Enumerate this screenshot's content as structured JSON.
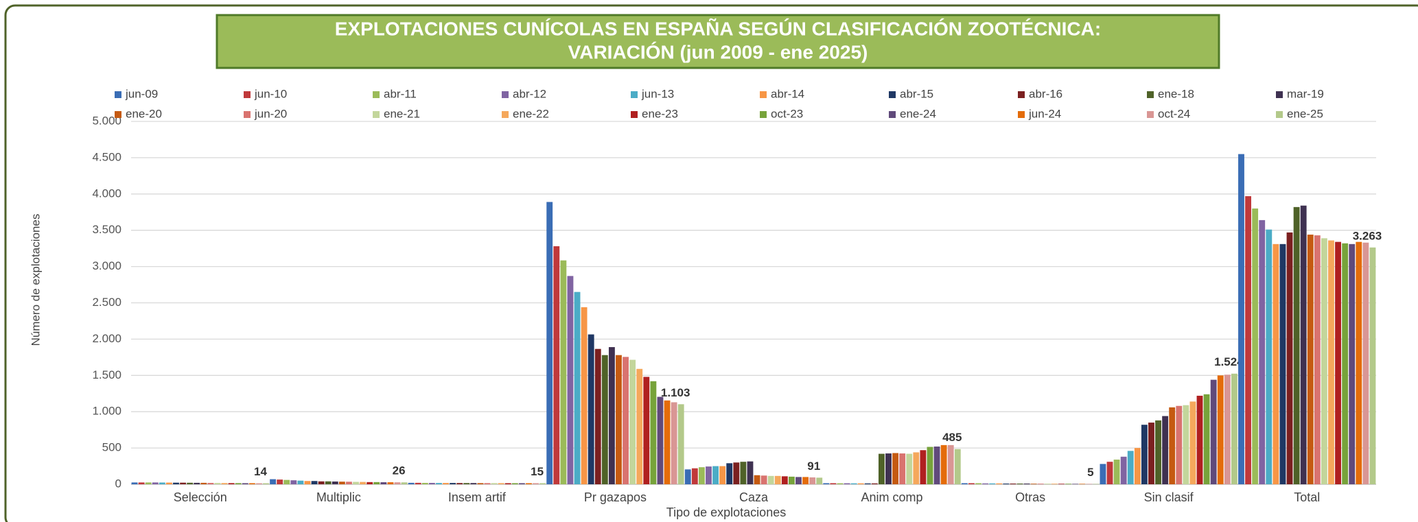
{
  "chart_data": {
    "type": "bar",
    "title": "EXPLOTACIONES CUNÍCOLAS EN ESPAÑA SEGÚN CLASIFICACIÓN ZOOTÉCNICA:",
    "subtitle": "VARIACIÓN  (jun 2009 - ene 2025)",
    "x_label": "Tipo de explotaciones",
    "y_label": "Número de explotaciones",
    "categories": [
      "Selección",
      "Multiplic",
      "Insem artif",
      "Pr gazapos",
      "Caza",
      "Anim comp",
      "Otras",
      "Sin clasif",
      "Total"
    ],
    "ylim": [
      0,
      5000
    ],
    "yticks": [
      0,
      500,
      {
        "value": 1000,
        "label": "1.000"
      },
      {
        "value": 1500,
        "label": "1.500"
      },
      {
        "value": 2000,
        "label": "2.000"
      },
      {
        "value": 2500,
        "label": "2.500"
      },
      {
        "value": 3000,
        "label": "3.000"
      },
      {
        "value": 3500,
        "label": "3.500"
      },
      {
        "value": 4000,
        "label": "4.000"
      },
      {
        "value": 4500,
        "label": "4.500"
      },
      {
        "value": 5000,
        "label": "5.000"
      }
    ],
    "grid": true,
    "legend": "top",
    "series": [
      {
        "name": "jun-09",
        "color": "#3a6db5",
        "values": [
          25,
          70,
          20,
          3890,
          205,
          15,
          15,
          280,
          4550
        ]
      },
      {
        "name": "jun-10",
        "color": "#c0393b",
        "values": [
          25,
          65,
          20,
          3280,
          220,
          15,
          15,
          310,
          3970
        ]
      },
      {
        "name": "abr-11",
        "color": "#9bbb59",
        "values": [
          25,
          60,
          19,
          3085,
          235,
          14,
          15,
          340,
          3800
        ]
      },
      {
        "name": "abr-12",
        "color": "#8064a2",
        "values": [
          25,
          55,
          19,
          2870,
          245,
          14,
          12,
          380,
          3640
        ]
      },
      {
        "name": "jun-13",
        "color": "#4bacc6",
        "values": [
          24,
          50,
          18,
          2650,
          250,
          13,
          12,
          460,
          3510
        ]
      },
      {
        "name": "abr-14",
        "color": "#f79646",
        "values": [
          23,
          45,
          18,
          2440,
          250,
          13,
          12,
          500,
          3310
        ]
      },
      {
        "name": "abr-15",
        "color": "#1f3864",
        "values": [
          22,
          45,
          18,
          2065,
          290,
          12,
          10,
          820,
          3310
        ]
      },
      {
        "name": "abr-16",
        "color": "#7b2020",
        "values": [
          22,
          40,
          17,
          1865,
          300,
          12,
          10,
          850,
          3470
        ]
      },
      {
        "name": "ene-18",
        "color": "#4f6228",
        "values": [
          21,
          40,
          17,
          1780,
          310,
          420,
          10,
          880,
          3820
        ]
      },
      {
        "name": "mar-19",
        "color": "#3f3151",
        "values": [
          20,
          38,
          17,
          1890,
          315,
          425,
          10,
          940,
          3840
        ]
      },
      {
        "name": "ene-20",
        "color": "#c55a11",
        "values": [
          20,
          36,
          16,
          1780,
          125,
          430,
          8,
          1060,
          3440
        ]
      },
      {
        "name": "jun-20",
        "color": "#d9736f",
        "values": [
          19,
          35,
          16,
          1755,
          120,
          425,
          8,
          1080,
          3430
        ]
      },
      {
        "name": "ene-21",
        "color": "#c3d69b",
        "values": [
          18,
          33,
          16,
          1715,
          115,
          420,
          8,
          1090,
          3390
        ]
      },
      {
        "name": "ene-22",
        "color": "#f5a85c",
        "values": [
          17,
          32,
          16,
          1590,
          115,
          440,
          8,
          1140,
          3360
        ]
      },
      {
        "name": "ene-23",
        "color": "#b02020",
        "values": [
          16,
          30,
          15,
          1480,
          110,
          470,
          7,
          1220,
          3340
        ]
      },
      {
        "name": "oct-23",
        "color": "#77a33b",
        "values": [
          16,
          30,
          15,
          1420,
          105,
          515,
          7,
          1240,
          3320
        ]
      },
      {
        "name": "ene-24",
        "color": "#604a7b",
        "values": [
          15,
          28,
          15,
          1205,
          100,
          520,
          6,
          1440,
          3310
        ]
      },
      {
        "name": "jun-24",
        "color": "#e46c0a",
        "values": [
          15,
          28,
          15,
          1155,
          100,
          540,
          6,
          1500,
          3340
        ]
      },
      {
        "name": "oct-24",
        "color": "#d99694",
        "values": [
          14,
          27,
          15,
          1130,
          95,
          540,
          5,
          1510,
          3330
        ]
      },
      {
        "name": "ene-25",
        "color": "#b3c98a",
        "values": [
          14,
          26,
          15,
          1103,
          91,
          485,
          5,
          1524,
          3263
        ],
        "value_labels": [
          "14",
          "26",
          "15",
          "1.103",
          "91",
          "485",
          "5",
          "1.524",
          "3.263"
        ]
      }
    ]
  }
}
